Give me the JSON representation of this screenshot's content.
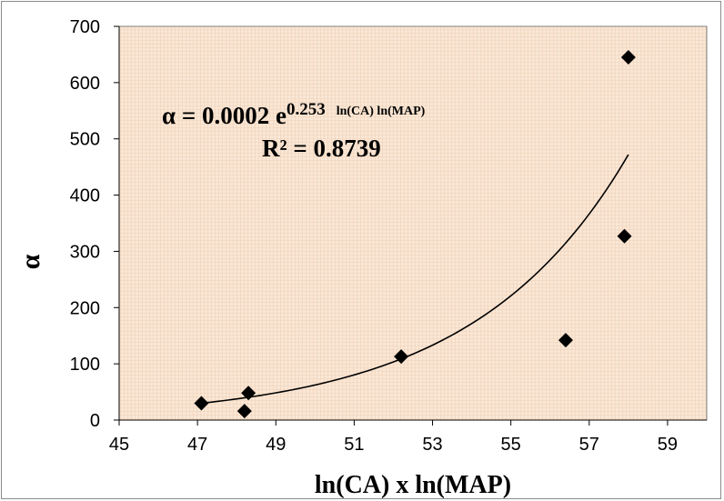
{
  "chart_data": {
    "type": "scatter",
    "title": "",
    "xlabel": "ln(CA) x ln(MAP)",
    "ylabel": "α",
    "xlim": [
      45,
      60
    ],
    "ylim": [
      0,
      700
    ],
    "x_ticks": [
      45,
      47,
      49,
      51,
      53,
      55,
      57,
      59
    ],
    "y_ticks": [
      0,
      100,
      200,
      300,
      400,
      500,
      600,
      700
    ],
    "grid": false,
    "legend": "none",
    "series": [
      {
        "marker": "diamond",
        "color": "#000000",
        "points": [
          {
            "x": 47.1,
            "y": 30
          },
          {
            "x": 48.2,
            "y": 16
          },
          {
            "x": 48.3,
            "y": 48
          },
          {
            "x": 52.2,
            "y": 113
          },
          {
            "x": 56.4,
            "y": 142
          },
          {
            "x": 57.9,
            "y": 327
          },
          {
            "x": 58.0,
            "y": 645
          }
        ]
      }
    ],
    "trendline": {
      "type": "exponential",
      "a": 0.0002,
      "b": 0.253,
      "x_range": [
        47.1,
        58.0
      ]
    },
    "annotations": {
      "equation_main": "α = 0.0002 e",
      "equation_exponent_number": "0.253",
      "equation_exponent_vars": "ln(CA) ln(MAP)",
      "r_squared": "R² = 0.8739"
    },
    "colors": {
      "plot_background": "#f9e7d6",
      "plot_grid_pattern": "#efc8a8",
      "marker": "#000000",
      "trendline": "#000000"
    }
  }
}
